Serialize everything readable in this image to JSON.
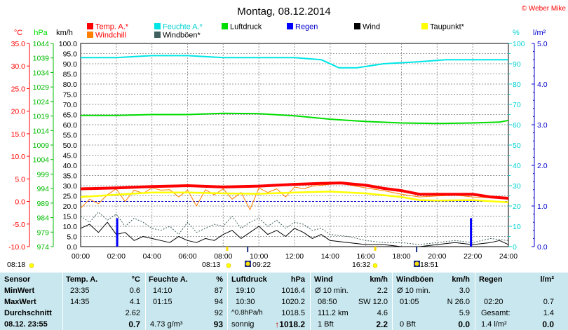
{
  "title": "Montag, 08.12.2014",
  "copyright": "© Weber Mike",
  "legend": [
    {
      "label": "Temp. A.*",
      "color": "#ff0000",
      "text_color": "#ff0000"
    },
    {
      "label": "Feuchte A.*",
      "color": "#00e5e5",
      "text_color": "#00d0d0"
    },
    {
      "label": "Luftdruck",
      "color": "#00dd00",
      "text_color": "#000000"
    },
    {
      "label": "Regen",
      "color": "#0000ff",
      "text_color": "#0000cc"
    },
    {
      "label": "Wind",
      "color": "#000000",
      "text_color": "#000000"
    },
    {
      "label": "Taupunkt*",
      "color": "#ffff00",
      "text_color": "#000000"
    },
    {
      "label": "Windchill",
      "color": "#ff8000",
      "text_color": "#ff0000"
    },
    {
      "label": "Windböen*",
      "color": "#406060",
      "text_color": "#000000"
    }
  ],
  "axis_units": {
    "temp": "°C",
    "pressure": "hPa",
    "wind": "km/h",
    "humidity": "%",
    "rain": "l/m²"
  },
  "colors": {
    "temp": "#ff0000",
    "humidity": "#00e5e5",
    "pressure": "#00dd00",
    "rain": "#0000ff",
    "wind": "#000000",
    "dewpoint": "#ffff00",
    "windchill": "#ff8000",
    "gust": "#406060",
    "table_bg": "#c8e7ee"
  },
  "sun_events": [
    {
      "label": "08:18",
      "type": "sunrise"
    },
    {
      "label": "08:13",
      "type": "sunrise"
    },
    {
      "label": "09:22",
      "type": "moon"
    },
    {
      "label": "16:32",
      "type": "sunset"
    },
    {
      "label": "18:51",
      "type": "moon"
    }
  ],
  "chart_data": {
    "type": "line",
    "x_ticks": [
      "00:00",
      "02:00",
      "04:00",
      "06:00",
      "08:00",
      "10:00",
      "12:00",
      "14:00",
      "16:00",
      "18:00",
      "20:00",
      "22:00",
      "24:00"
    ],
    "axes": {
      "temp": {
        "label": "°C",
        "range": [
          -10,
          35
        ],
        "ticks": [
          "35.0",
          "30.0",
          "25.0",
          "20.0",
          "15.0",
          "10.0",
          "5.0",
          "0.0",
          "-5.0",
          "-10.0"
        ]
      },
      "pressure": {
        "label": "hPa",
        "range": [
          974,
          1044
        ],
        "ticks": [
          "1044",
          "1039",
          "1034",
          "1029",
          "1024",
          "1019",
          "1014",
          "1009",
          "1004",
          "999",
          "994",
          "989",
          "984",
          "979",
          "974"
        ]
      },
      "wind": {
        "label": "km/h",
        "range": [
          0,
          100
        ],
        "ticks": [
          "100.0",
          "95.0",
          "90.0",
          "85.0",
          "80.0",
          "75.0",
          "70.0",
          "65.0",
          "60.0",
          "55.0",
          "50.0",
          "45.0",
          "40.0",
          "35.0",
          "30.0",
          "25.0",
          "20.0",
          "15.0",
          "10.0",
          "5.0",
          "0.0"
        ]
      },
      "humidity": {
        "label": "%",
        "range": [
          0,
          100
        ],
        "ticks": [
          "100",
          "90",
          "80",
          "70",
          "60",
          "50",
          "40",
          "30",
          "20",
          "10",
          "0"
        ]
      },
      "rain": {
        "label": "l/m²",
        "range": [
          0,
          5
        ],
        "ticks": [
          "5.0",
          "4.0",
          "3.0",
          "2.0",
          "1.0",
          "0.0"
        ]
      }
    },
    "series": [
      {
        "name": "Feuchte A.*",
        "axis": "humidity",
        "x": [
          0,
          2,
          4,
          6,
          8,
          10,
          12,
          13.5,
          14.5,
          15.5,
          17,
          19,
          20.5,
          22,
          24
        ],
        "y": [
          93,
          93,
          94,
          94,
          93,
          93,
          93,
          92,
          88,
          88,
          90,
          91,
          92,
          92,
          92
        ]
      },
      {
        "name": "Luftdruck",
        "axis": "pressure",
        "x": [
          0,
          2,
          4,
          6,
          8,
          10,
          12,
          14,
          16,
          18,
          20,
          22,
          23.5,
          24
        ],
        "y": [
          1019.2,
          1019.2,
          1019.5,
          1019.5,
          1019.9,
          1019.8,
          1019.1,
          1017.9,
          1017.1,
          1016.6,
          1016.4,
          1016.6,
          1016.9,
          1017.5
        ]
      },
      {
        "name": "Temp. A.*",
        "axis": "temp",
        "x": [
          0,
          2,
          4,
          6,
          8,
          10,
          12,
          13.5,
          14.6,
          16,
          17,
          18,
          19,
          20,
          22,
          23,
          24
        ],
        "y": [
          2.8,
          3.0,
          3.3,
          3.5,
          3.2,
          3.4,
          3.8,
          4.0,
          4.1,
          3.6,
          2.9,
          2.4,
          1.6,
          1.6,
          1.6,
          1.0,
          0.7
        ]
      },
      {
        "name": "Taupunkt*",
        "axis": "temp",
        "x": [
          0,
          2,
          4,
          6,
          8,
          10,
          12,
          14,
          16,
          18,
          19,
          20,
          22,
          24
        ],
        "y": [
          1.0,
          1.5,
          2.0,
          2.0,
          1.8,
          1.7,
          2.0,
          2.2,
          1.8,
          1.0,
          0.3,
          0.2,
          0.3,
          -0.2
        ]
      },
      {
        "name": "Windchill",
        "axis": "temp",
        "x": [
          0,
          0.5,
          1,
          1.5,
          2,
          2.5,
          3,
          3.5,
          4,
          4.5,
          5,
          5.5,
          6,
          6.5,
          7,
          7.5,
          8,
          8.5,
          9,
          9.5,
          10,
          10.5,
          11,
          11.5,
          12,
          12.5,
          13,
          13.5,
          14,
          14.5,
          15,
          16,
          17,
          18,
          19,
          20,
          21,
          22,
          23,
          24
        ],
        "y": [
          -1.5,
          0.5,
          -0.5,
          1.5,
          2.8,
          0.0,
          2.5,
          1.8,
          3.0,
          2.5,
          2.6,
          1.0,
          2.5,
          -1.0,
          2.6,
          1.5,
          2.8,
          0.5,
          2.0,
          -1.8,
          3.0,
          2.0,
          2.8,
          1.0,
          3.2,
          2.8,
          3.4,
          3.6,
          3.8,
          4.1,
          3.7,
          3.0,
          2.4,
          1.6,
          1.0,
          1.2,
          1.4,
          1.0,
          0.8,
          0.7
        ]
      },
      {
        "name": "Wind",
        "axis": "wind",
        "x": [
          0,
          0.5,
          1,
          1.5,
          2,
          2.5,
          3,
          3.5,
          4,
          4.5,
          5,
          5.5,
          6,
          6.5,
          7,
          7.5,
          8,
          8.5,
          9,
          9.5,
          10,
          10.5,
          11,
          11.5,
          12,
          12.5,
          13,
          13.5,
          14,
          15,
          16,
          17,
          18,
          19,
          20,
          21,
          22,
          23,
          23.5,
          24
        ],
        "y": [
          9,
          11,
          7,
          12,
          6,
          7,
          3,
          5,
          4,
          3,
          2,
          5,
          3,
          2,
          4,
          3,
          6,
          8,
          4,
          7,
          10,
          6,
          8,
          5,
          9,
          7,
          4,
          6,
          3,
          2,
          1,
          1,
          0,
          0,
          1,
          2,
          1,
          2,
          3,
          1
        ]
      },
      {
        "name": "Windböen*",
        "axis": "wind",
        "x": [
          0,
          0.5,
          1,
          1.5,
          2,
          2.5,
          3,
          3.5,
          4,
          4.5,
          5,
          5.5,
          6,
          6.5,
          7,
          7.5,
          8,
          8.5,
          9,
          9.5,
          10,
          10.5,
          11,
          11.5,
          12,
          12.5,
          13,
          13.5,
          14,
          15,
          16,
          17,
          18,
          19,
          20,
          21,
          22,
          23,
          24
        ],
        "y": [
          15,
          12,
          17,
          13,
          16,
          10,
          14,
          12,
          9,
          8,
          10,
          6,
          12,
          7,
          9,
          11,
          10,
          15,
          9,
          12,
          14,
          10,
          13,
          9,
          12,
          11,
          8,
          9,
          6,
          5,
          3,
          2,
          2,
          1,
          2,
          3,
          2,
          4,
          3
        ]
      },
      {
        "name": "Regen",
        "axis": "rain",
        "type": "bar",
        "x": [
          2.05,
          21.9
        ],
        "y": [
          0.7,
          0.7
        ]
      }
    ],
    "grid": true
  },
  "table": {
    "headers": [
      [
        "Sensor"
      ],
      [
        "Temp. A.",
        "°C"
      ],
      [
        "Feuchte A.",
        "%"
      ],
      [
        "Luftdruck",
        "hPa"
      ],
      [
        "Wind",
        "km/h"
      ],
      [
        "Windböen",
        "km/h"
      ],
      [
        "Regen",
        "l/m²"
      ]
    ],
    "row_labels": [
      "MinWert",
      "MaxWert",
      "Durchschnitt",
      "08.12. 23:55"
    ],
    "temp": [
      [
        "23:35",
        "0.6"
      ],
      [
        "14:35",
        "4.1"
      ],
      [
        "",
        "2.62"
      ],
      [
        "",
        "0.7"
      ]
    ],
    "humidity": [
      [
        "14:10",
        "87"
      ],
      [
        "01:15",
        "94"
      ],
      [
        "",
        "92"
      ],
      [
        "4.73 g/m³",
        "93"
      ]
    ],
    "pressure": [
      [
        "19:10",
        "1016.4"
      ],
      [
        "10:30",
        "1020.2"
      ],
      [
        "^0.8hPa/h",
        "1018.5"
      ],
      [
        "sonnig",
        "1018.2"
      ]
    ],
    "wind": [
      [
        "Ø 10 min.",
        "2.2"
      ],
      [
        "08:50",
        "SW 12.0"
      ],
      [
        "111.2 km",
        "4.6"
      ],
      [
        "1 Bft",
        "2.2"
      ]
    ],
    "gust": [
      [
        "Ø 10 min.",
        "3.0"
      ],
      [
        "01:05",
        "N 26.0"
      ],
      [
        "",
        "5.9"
      ],
      [
        "0 Bft",
        "0.0"
      ]
    ],
    "rain": [
      [
        "",
        ""
      ],
      [
        "02:20",
        "0.7"
      ],
      [
        "Gesamt:",
        "1.4"
      ],
      [
        "1.4 l/m²",
        "0.0"
      ]
    ],
    "pressure_trend_arrow": "↑"
  }
}
